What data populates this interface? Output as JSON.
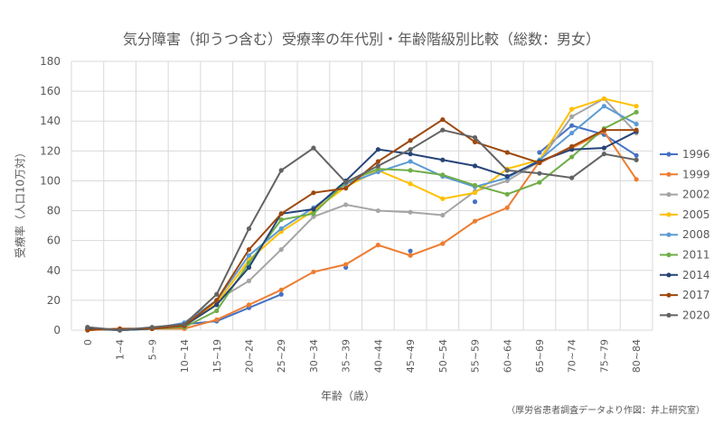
{
  "chart_data": {
    "type": "line",
    "title": "気分障害（抑うつ含む）受療率の年代別・年齢階級別比較（総数：男女）",
    "xlabel": "年齢（歳）",
    "ylabel": "受療率（人口10万対）",
    "note": "（厚労省患者調査データより作図：井上研究室）",
    "ylim": [
      0,
      180
    ],
    "yticks": [
      0,
      20,
      40,
      60,
      80,
      100,
      120,
      140,
      160,
      180
    ],
    "grid": true,
    "legend": "right",
    "categories": [
      "0",
      "1~4",
      "5~9",
      "10~14",
      "15~19",
      "20~24",
      "25~29",
      "30~34",
      "35~39",
      "40~44",
      "45~49",
      "50~54",
      "55~59",
      "60~64",
      "65~69",
      "70~74",
      "75~79",
      "80~84"
    ],
    "series": [
      {
        "name": "1996",
        "color": "#4472C4",
        "values": [
          2,
          0,
          1,
          4,
          6,
          15,
          24,
          null,
          42,
          null,
          53,
          null,
          86,
          null,
          119,
          137,
          131,
          117
        ]
      },
      {
        "name": "1999",
        "color": "#ED7D31",
        "values": [
          0,
          1,
          1,
          1,
          7,
          17,
          27,
          39,
          44,
          57,
          50,
          58,
          73,
          82,
          113,
          122,
          133,
          101
        ]
      },
      {
        "name": "2002",
        "color": "#A5A5A5",
        "values": [
          1,
          0,
          1,
          3,
          20,
          33,
          54,
          76,
          84,
          80,
          79,
          77,
          93,
          100,
          113,
          143,
          155,
          132
        ]
      },
      {
        "name": "2005",
        "color": "#FFC000",
        "values": [
          1,
          0,
          1,
          3,
          18,
          47,
          66,
          80,
          96,
          107,
          98,
          88,
          92,
          108,
          114,
          148,
          155,
          150
        ]
      },
      {
        "name": "2008",
        "color": "#5B9BD5",
        "values": [
          1,
          0,
          1,
          5,
          20,
          50,
          68,
          82,
          98,
          106,
          113,
          103,
          96,
          102,
          114,
          132,
          150,
          138
        ]
      },
      {
        "name": "2011",
        "color": "#70AD47",
        "values": [
          1,
          0,
          1,
          2,
          13,
          45,
          74,
          78,
          99,
          108,
          107,
          104,
          97,
          91,
          99,
          116,
          135,
          146
        ]
      },
      {
        "name": "2014",
        "color": "#264478",
        "values": [
          1,
          0,
          1,
          3,
          17,
          42,
          78,
          81,
          100,
          121,
          118,
          114,
          110,
          103,
          113,
          121,
          122,
          133
        ]
      },
      {
        "name": "2017",
        "color": "#9E480E",
        "values": [
          0,
          1,
          1,
          3,
          20,
          54,
          78,
          92,
          95,
          113,
          127,
          141,
          126,
          119,
          112,
          123,
          134,
          134
        ]
      },
      {
        "name": "2020",
        "color": "#636363",
        "values": [
          2,
          0,
          2,
          4,
          24,
          68,
          107,
          122,
          99,
          110,
          121,
          134,
          129,
          107,
          105,
          102,
          118,
          114
        ]
      }
    ]
  }
}
